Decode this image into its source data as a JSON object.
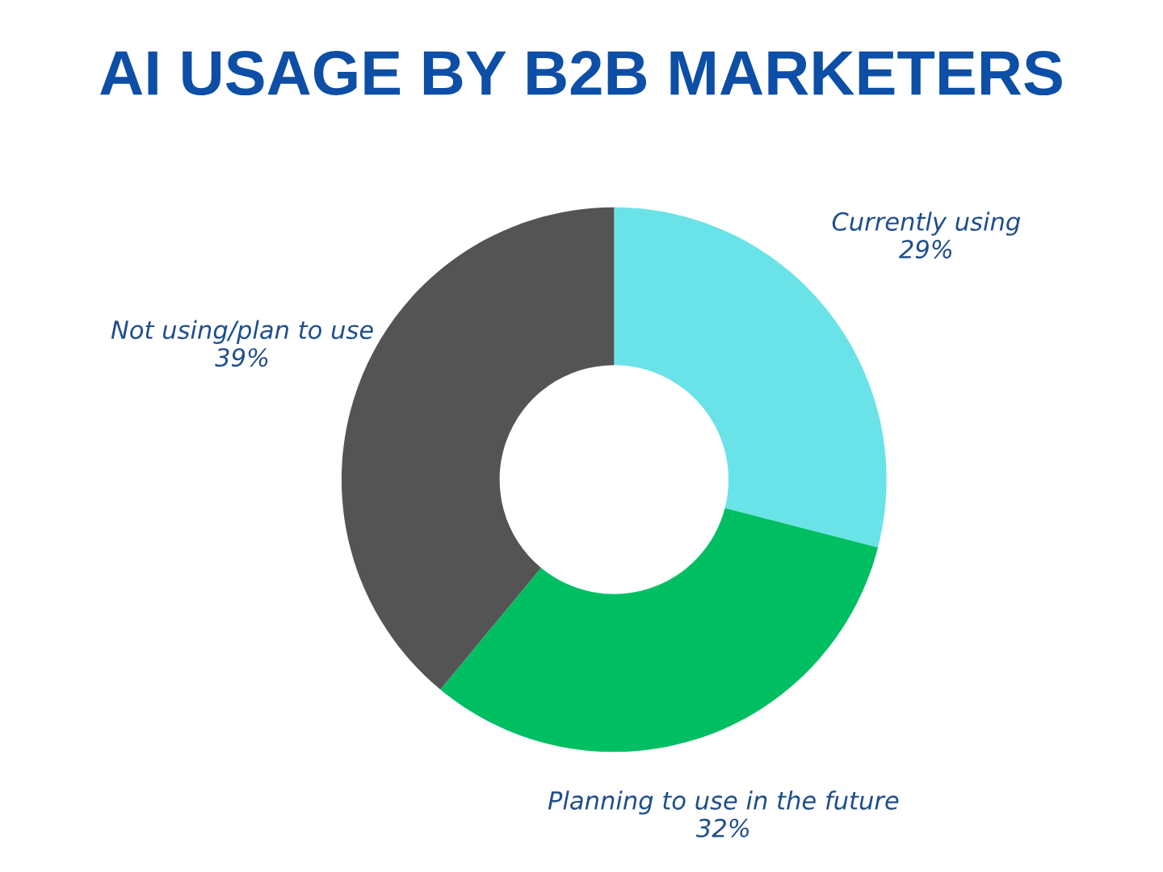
{
  "chart_data": {
    "type": "donut",
    "title": "AI USAGE BY B2B MARKETERS",
    "categories": [
      "Currently using",
      "Planning to use in the future",
      "Not using/plan to use"
    ],
    "values": [
      29,
      32,
      39
    ],
    "colors": [
      "#6ae3e8",
      "#00bf63",
      "#545454"
    ],
    "value_labels": [
      "29%",
      "32%",
      "39%"
    ],
    "legend": false
  }
}
